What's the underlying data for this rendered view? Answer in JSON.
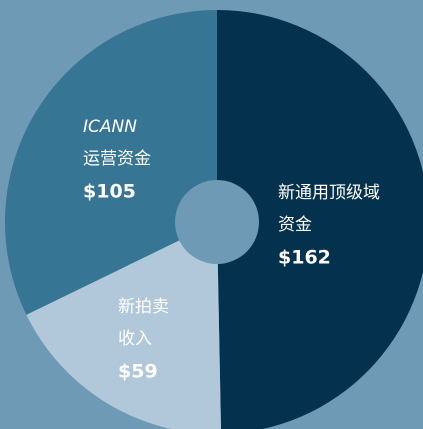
{
  "chart_data": {
    "type": "pie",
    "categories": [
      [
        "新通用顶级域",
        "资金"
      ],
      [
        "新拍卖",
        "收入"
      ],
      [
        "ICANN",
        "运营资金"
      ]
    ],
    "values": [
      162,
      59,
      105
    ],
    "value_labels": [
      "$162",
      "$59",
      "$105"
    ],
    "colors": [
      "#04314e",
      "#b1c7da",
      "#377595"
    ],
    "background": "#6e9ab5"
  }
}
